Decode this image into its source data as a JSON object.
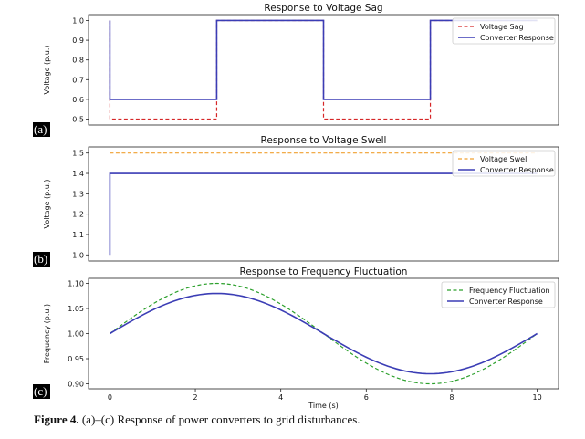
{
  "figure": {
    "caption_label": "Figure 4.",
    "caption_text": " (a)–(c) Response of power converters to grid disturbances."
  },
  "chart_data": [
    {
      "type": "line",
      "panel_tag": "(a)",
      "title": "Response to Voltage Sag",
      "xlabel": "",
      "ylabel": "Voltage (p.u.)",
      "xlim": [
        -0.5,
        10.5
      ],
      "ylim": [
        0.47,
        1.03
      ],
      "xticks": [],
      "yticks": [
        0.5,
        0.6,
        0.7,
        0.8,
        0.9,
        1.0
      ],
      "ytick_labels": [
        "0.5",
        "0.6",
        "0.7",
        "0.8",
        "0.9",
        "1.0"
      ],
      "legend": "top-right",
      "series": [
        {
          "name": "Voltage Sag",
          "color": "#d62728",
          "style": "dashed",
          "x": [
            0,
            0,
            2.5,
            2.5,
            5,
            5,
            7.5,
            7.5,
            10
          ],
          "y": [
            1.0,
            0.5,
            0.5,
            1.0,
            1.0,
            0.5,
            0.5,
            1.0,
            1.0
          ]
        },
        {
          "name": "Converter Response",
          "color": "#3b3db5",
          "style": "solid",
          "x": [
            0,
            0,
            2.5,
            2.5,
            5,
            5,
            7.5,
            7.5,
            10
          ],
          "y": [
            1.0,
            0.6,
            0.6,
            1.0,
            1.0,
            0.6,
            0.6,
            1.0,
            1.0
          ]
        }
      ]
    },
    {
      "type": "line",
      "panel_tag": "(b)",
      "title": "Response to Voltage Swell",
      "xlabel": "",
      "ylabel": "Voltage (p.u.)",
      "xlim": [
        -0.5,
        10.5
      ],
      "ylim": [
        0.97,
        1.53
      ],
      "xticks": [],
      "yticks": [
        1.0,
        1.1,
        1.2,
        1.3,
        1.4,
        1.5
      ],
      "ytick_labels": [
        "1.0",
        "1.1",
        "1.2",
        "1.3",
        "1.4",
        "1.5"
      ],
      "legend": "top-right",
      "series": [
        {
          "name": "Voltage Swell",
          "color": "#f0a030",
          "style": "dashed",
          "x": [
            0,
            10
          ],
          "y": [
            1.5,
            1.5
          ]
        },
        {
          "name": "Converter Response",
          "color": "#3b3db5",
          "style": "solid",
          "x": [
            0,
            0,
            10
          ],
          "y": [
            1.0,
            1.4,
            1.4
          ]
        }
      ]
    },
    {
      "type": "line",
      "panel_tag": "(c)",
      "title": "Response to Frequency Fluctuation",
      "xlabel": "Time (s)",
      "ylabel": "Frequency (p.u.)",
      "xlim": [
        -0.5,
        10.5
      ],
      "ylim": [
        0.89,
        1.11
      ],
      "xticks": [
        0,
        2,
        4,
        6,
        8,
        10
      ],
      "xtick_labels": [
        "0",
        "2",
        "4",
        "6",
        "8",
        "10"
      ],
      "yticks": [
        0.9,
        0.95,
        1.0,
        1.05,
        1.1
      ],
      "ytick_labels": [
        "0.90",
        "0.95",
        "1.00",
        "1.05",
        "1.10"
      ],
      "legend": "top-right",
      "series": [
        {
          "name": "Frequency Fluctuation",
          "color": "#2ca02c",
          "style": "dashed",
          "function": "1 + 0.1*sin(2*pi*t/10)",
          "x": [
            0,
            1,
            2,
            2.5,
            3,
            4,
            5,
            6,
            7,
            7.5,
            8,
            9,
            10
          ],
          "y": [
            1.0,
            1.059,
            1.095,
            1.1,
            1.095,
            1.059,
            1.0,
            0.941,
            0.905,
            0.9,
            0.905,
            0.941,
            1.0
          ]
        },
        {
          "name": "Converter Response",
          "color": "#3b3db5",
          "style": "solid",
          "function": "1 + 0.08*sin(2*pi*t/10)",
          "x": [
            0,
            1,
            2,
            2.5,
            3,
            4,
            5,
            6,
            7,
            7.5,
            8,
            9,
            10
          ],
          "y": [
            1.0,
            1.047,
            1.076,
            1.08,
            1.076,
            1.047,
            1.0,
            0.953,
            0.924,
            0.92,
            0.924,
            0.953,
            1.0
          ]
        }
      ]
    }
  ]
}
